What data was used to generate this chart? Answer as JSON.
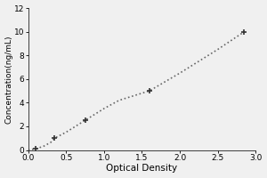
{
  "x_data": [
    0.1,
    0.35,
    0.75,
    1.6,
    2.85
  ],
  "y_data": [
    0.1,
    1.0,
    2.5,
    5.0,
    10.0
  ],
  "xlabel": "Optical Density",
  "ylabel": "Concentration(ng/mL)",
  "xlim": [
    0,
    3
  ],
  "ylim": [
    0,
    12
  ],
  "xticks": [
    0,
    0.5,
    1,
    1.5,
    2,
    2.5,
    3
  ],
  "yticks": [
    0,
    2,
    4,
    6,
    8,
    10,
    12
  ],
  "line_color": "#666666",
  "marker": "+",
  "marker_size": 5,
  "marker_color": "#333333",
  "linestyle": "dotted",
  "linewidth": 1.2,
  "bg_color": "#f0f0f0",
  "plot_bg_color": "#f0f0f0",
  "xlabel_fontsize": 7.5,
  "ylabel_fontsize": 6.5,
  "tick_fontsize": 6.5,
  "curve_x": [
    0.0,
    0.1,
    0.2,
    0.3,
    0.35,
    0.5,
    0.75,
    1.0,
    1.2,
    1.6,
    2.0,
    2.5,
    2.85
  ],
  "curve_y": [
    0.0,
    0.1,
    0.3,
    0.65,
    1.0,
    1.5,
    2.5,
    3.5,
    4.2,
    5.0,
    6.5,
    8.5,
    10.0
  ]
}
